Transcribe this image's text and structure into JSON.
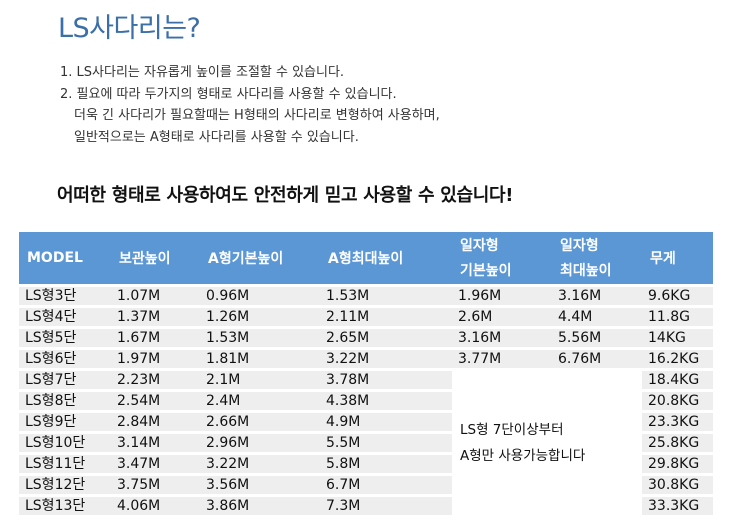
{
  "title": "LS사다리는?",
  "intro": {
    "line1": "1. LS사다리는 자유롭게 높이를 조절할 수 있습니다.",
    "line2": "2. 필요에 따라 두가지의 형태로 사다리를 사용할 수 있습니다.",
    "line3": "더욱 긴 사다리가 필요할때는 H형태의 사다리로 변형하여 사용하며,",
    "line4": "일반적으로는  A형태로 사다리를 사용할 수 있습니다."
  },
  "headline": "어떠한 형태로 사용하여도 안전하게 믿고 사용할 수 있습니다!",
  "table": {
    "headers": {
      "model": "MODEL",
      "storage": "보관높이",
      "a_basic": "A형기본높이",
      "a_max": "A형최대높이",
      "i_basic_1": "일자형",
      "i_basic_2": "기본높이",
      "i_max_1": "일자형",
      "i_max_2": "최대높이",
      "weight": "무게"
    },
    "rows": [
      {
        "model": "LS형3단",
        "storage": "1.07M",
        "a_basic": "0.96M",
        "a_max": "1.53M",
        "i_basic": "1.96M",
        "i_max": "3.16M",
        "weight": "9.6KG"
      },
      {
        "model": "LS형4단",
        "storage": "1.37M",
        "a_basic": "1.26M",
        "a_max": "2.11M",
        "i_basic": "2.6M",
        "i_max": "4.4M",
        "weight": "11.8G"
      },
      {
        "model": "LS형5단",
        "storage": "1.67M",
        "a_basic": "1.53M",
        "a_max": "2.65M",
        "i_basic": "3.16M",
        "i_max": "5.56M",
        "weight": "14KG"
      },
      {
        "model": "LS형6단",
        "storage": "1.97M",
        "a_basic": "1.81M",
        "a_max": "3.22M",
        "i_basic": "3.77M",
        "i_max": "6.76M",
        "weight": "16.2KG"
      },
      {
        "model": "LS형7단",
        "storage": "2.23M",
        "a_basic": "2.1M",
        "a_max": "3.78M",
        "weight": "18.4KG"
      },
      {
        "model": "LS형8단",
        "storage": "2.54M",
        "a_basic": "2.4M",
        "a_max": "4.38M",
        "weight": "20.8KG"
      },
      {
        "model": "LS형9단",
        "storage": "2.84M",
        "a_basic": "2.66M",
        "a_max": "4.9M",
        "weight": "23.3KG"
      },
      {
        "model": "LS형10단",
        "storage": "3.14M",
        "a_basic": "2.96M",
        "a_max": "5.5M",
        "weight": "25.8KG"
      },
      {
        "model": "LS형11단",
        "storage": "3.47M",
        "a_basic": "3.22M",
        "a_max": "5.8M",
        "weight": "29.8KG"
      },
      {
        "model": "LS형12단",
        "storage": "3.75M",
        "a_basic": "3.56M",
        "a_max": "6.7M",
        "weight": "30.8KG"
      },
      {
        "model": "LS형13단",
        "storage": "4.06M",
        "a_basic": "3.86M",
        "a_max": "7.3M",
        "weight": "33.3KG"
      }
    ],
    "note_line1": "LS형  7단이상부터",
    "note_line2": "A형만  사용가능합니다"
  }
}
